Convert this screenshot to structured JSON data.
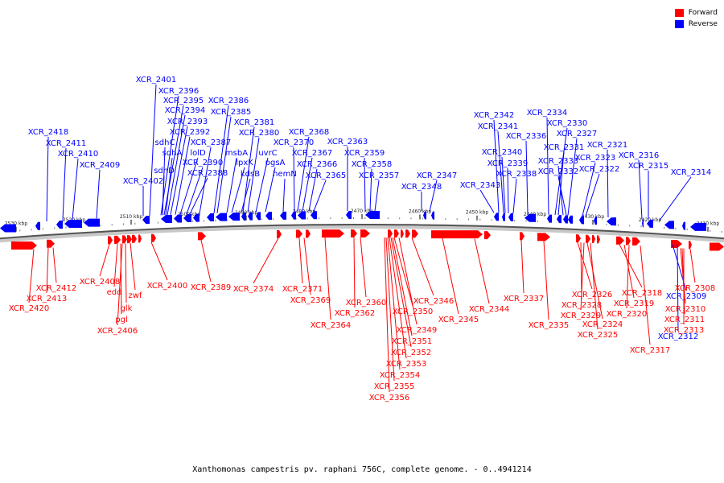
{
  "legend": {
    "forward_label": "Forward",
    "reverse_label": "Reverse",
    "forward_color": "#ff0000",
    "reverse_color": "#0000ff"
  },
  "caption": "Xanthomonas campestris pv. raphani 756C, complete genome. - 0..4941214",
  "chart_data": {
    "type": "linear-genome-map",
    "ticks": [
      "2530 kbp",
      "2520 kbp",
      "2510 kbp",
      "2500 kbp",
      "2490 kbp",
      "2480 kbp",
      "2470 kbp",
      "2460 kbp",
      "2450 kbp",
      "2440 kbp",
      "2430 kbp",
      "2420 kbp",
      "2410 kbp"
    ],
    "reverse_genes": [
      "XCR_2418",
      "XCR_2411",
      "XCR_2410",
      "XCR_2409",
      "XCR_2402",
      "XCR_2401",
      "XCR_2396",
      "XCR_2395",
      "XCR_2394",
      "XCR_2393",
      "sdhC",
      "XCR_2392",
      "sdhA",
      "lolD",
      "sdhD",
      "XCR_2390",
      "XCR_2388",
      "XCR_2387",
      "XCR_2386",
      "XCR_2385",
      "msbA",
      "lpxK",
      "kdsB",
      "XCR_2381",
      "XCR_2380",
      "uvrC",
      "pgsA",
      "hemN",
      "XCR_2370",
      "XCR_2368",
      "XCR_2367",
      "XCR_2366",
      "XCR_2365",
      "XCR_2363",
      "XCR_2359",
      "XCR_2358",
      "XCR_2357",
      "XCR_2348",
      "XCR_2347",
      "XCR_2343",
      "XCR_2342",
      "XCR_2341",
      "XCR_2340",
      "XCR_2339",
      "XCR_2338",
      "XCR_2336",
      "XCR_2334",
      "XCR_2330",
      "XCR_2331",
      "XCR_2327",
      "XCR_2333",
      "XCR_2332",
      "XCR_2323",
      "XCR_2322",
      "XCR_2321",
      "XCR_2316",
      "XCR_2315",
      "XCR_2314",
      "XCR_2309",
      "XCR_2312"
    ],
    "forward_genes": [
      "XCR_2420",
      "XCR_2413",
      "XCR_2412",
      "XCR_2408",
      "edd",
      "pgl",
      "glk",
      "zwf",
      "XCR_2406",
      "XCR_2400",
      "XCR_2389",
      "XCR_2374",
      "XCR_2371",
      "XCR_2369",
      "XCR_2364",
      "XCR_2362",
      "XCR_2360",
      "XCR_2349",
      "XCR_2350",
      "XCR_2351",
      "XCR_2352",
      "XCR_2353",
      "XCR_2354",
      "XCR_2355",
      "XCR_2356",
      "XCR_2346",
      "XCR_2345",
      "XCR_2344",
      "XCR_2337",
      "XCR_2335",
      "XCR_2326",
      "XCR_2328",
      "XCR_2329",
      "XCR_2324",
      "XCR_2325",
      "XCR_2318",
      "XCR_2319",
      "XCR_2320",
      "XCR_2317",
      "XCR_2308",
      "XCR_2310",
      "XCR_2311",
      "XCR_2313"
    ]
  }
}
